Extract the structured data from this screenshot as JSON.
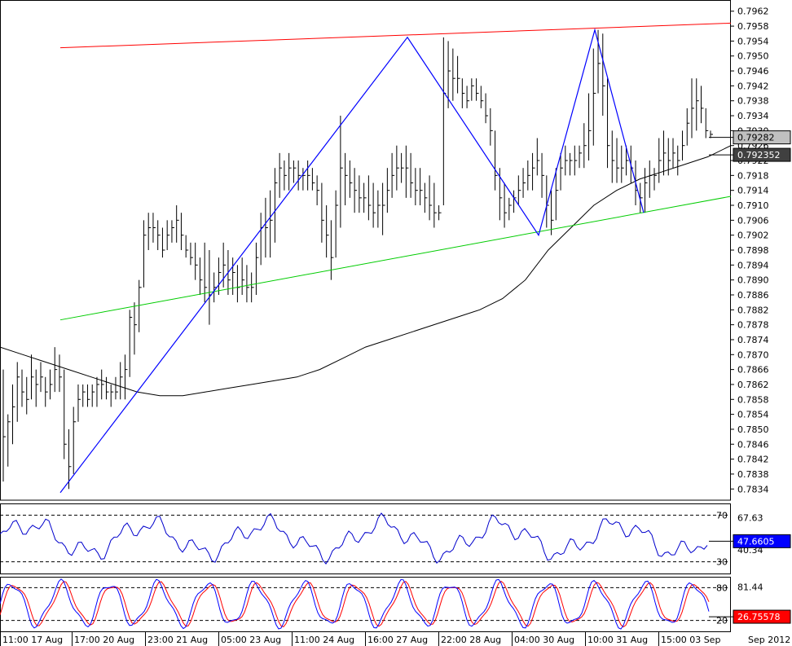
{
  "chart_data": [
    {
      "type": "ohlc",
      "panel": "price",
      "ylim": [
        0.7831,
        0.7965
      ],
      "y_ticks": [
        "0.7962",
        "0.7958",
        "0.7954",
        "0.7950",
        "0.7946",
        "0.7942",
        "0.7938",
        "0.7934",
        "0.7930",
        "0.7926",
        "0.7922",
        "0.7918",
        "0.7914",
        "0.7910",
        "0.7906",
        "0.7902",
        "0.7898",
        "0.7894",
        "0.7890",
        "0.7886",
        "0.7882",
        "0.7878",
        "0.7874",
        "0.7870",
        "0.7866",
        "0.7862",
        "0.7858",
        "0.7854",
        "0.7850",
        "0.7846",
        "0.7842",
        "0.7838",
        "0.7834"
      ],
      "x_labels": [
        "11:00 17 Aug",
        "17:00 20 Aug",
        "23:00 21 Aug",
        "05:00 23 Aug",
        "11:00 24 Aug",
        "16:00 27 Aug",
        "22:00 28 Aug",
        "04:00 30 Aug",
        "10:00 31 Aug",
        "15:00 03 Sep"
      ],
      "x_end_label": "Sep 2012",
      "price_labels": [
        {
          "text": "0.79282",
          "value": 0.79282,
          "bg": "#c0c0c0",
          "fg": "#000000"
        },
        {
          "text": "0.792352",
          "value": 0.792352,
          "bg": "#404040",
          "fg": "#ffffff"
        }
      ],
      "bars": [
        [
          0.7866,
          0.7836,
          0.7848
        ],
        [
          0.7854,
          0.784,
          0.7852
        ],
        [
          0.7862,
          0.7846,
          0.7856
        ],
        [
          0.7868,
          0.7852,
          0.7864
        ],
        [
          0.7866,
          0.7856,
          0.786
        ],
        [
          0.7864,
          0.7854,
          0.7858
        ],
        [
          0.787,
          0.7858,
          0.7864
        ],
        [
          0.7866,
          0.7856,
          0.7862
        ],
        [
          0.7868,
          0.786,
          0.7864
        ],
        [
          0.7864,
          0.7856,
          0.786
        ],
        [
          0.7866,
          0.7858,
          0.7862
        ],
        [
          0.7872,
          0.786,
          0.7866
        ],
        [
          0.787,
          0.786,
          0.7864
        ],
        [
          0.7866,
          0.7842,
          0.7846
        ],
        [
          0.785,
          0.7834,
          0.784
        ],
        [
          0.7856,
          0.7838,
          0.7852
        ],
        [
          0.7862,
          0.7852,
          0.7858
        ],
        [
          0.7862,
          0.7856,
          0.786
        ],
        [
          0.7862,
          0.7856,
          0.7858
        ],
        [
          0.7862,
          0.7856,
          0.786
        ],
        [
          0.7864,
          0.7856,
          0.7862
        ],
        [
          0.7866,
          0.7858,
          0.7862
        ],
        [
          0.7864,
          0.7858,
          0.786
        ],
        [
          0.7862,
          0.7856,
          0.786
        ],
        [
          0.7864,
          0.7858,
          0.786
        ],
        [
          0.7868,
          0.7858,
          0.7864
        ],
        [
          0.787,
          0.7858,
          0.7866
        ],
        [
          0.7882,
          0.7864,
          0.788
        ],
        [
          0.7884,
          0.787,
          0.7878
        ],
        [
          0.789,
          0.7876,
          0.7888
        ],
        [
          0.7906,
          0.7888,
          0.7902
        ],
        [
          0.7908,
          0.7898,
          0.7904
        ],
        [
          0.7908,
          0.79,
          0.7904
        ],
        [
          0.7906,
          0.7898,
          0.7902
        ],
        [
          0.7904,
          0.7896,
          0.7898
        ],
        [
          0.7906,
          0.7898,
          0.7902
        ],
        [
          0.7906,
          0.79,
          0.7904
        ],
        [
          0.791,
          0.79,
          0.7906
        ],
        [
          0.7908,
          0.7898,
          0.7902
        ],
        [
          0.7902,
          0.7896,
          0.7898
        ],
        [
          0.79,
          0.7894,
          0.7896
        ],
        [
          0.79,
          0.789,
          0.7894
        ],
        [
          0.7896,
          0.7886,
          0.789
        ],
        [
          0.79,
          0.7884,
          0.7888
        ],
        [
          0.7898,
          0.7878,
          0.7886
        ],
        [
          0.7892,
          0.7884,
          0.7888
        ],
        [
          0.7896,
          0.7886,
          0.7892
        ],
        [
          0.79,
          0.7888,
          0.7894
        ],
        [
          0.7898,
          0.7886,
          0.789
        ],
        [
          0.7896,
          0.7886,
          0.7892
        ],
        [
          0.7894,
          0.7884,
          0.7888
        ],
        [
          0.7896,
          0.7886,
          0.789
        ],
        [
          0.7894,
          0.7884,
          0.7888
        ],
        [
          0.7892,
          0.7884,
          0.7888
        ],
        [
          0.79,
          0.7886,
          0.7896
        ],
        [
          0.7908,
          0.7894,
          0.7904
        ],
        [
          0.7912,
          0.7896,
          0.7904
        ],
        [
          0.7914,
          0.7896,
          0.7906
        ],
        [
          0.792,
          0.79,
          0.7916
        ],
        [
          0.7924,
          0.7912,
          0.792
        ],
        [
          0.7922,
          0.7914,
          0.7918
        ],
        [
          0.7924,
          0.7914,
          0.792
        ],
        [
          0.7922,
          0.7916,
          0.792
        ],
        [
          0.7922,
          0.7914,
          0.7918
        ],
        [
          0.792,
          0.7914,
          0.7918
        ],
        [
          0.7922,
          0.7914,
          0.7918
        ],
        [
          0.792,
          0.7914,
          0.7916
        ],
        [
          0.7918,
          0.791,
          0.7914
        ],
        [
          0.7916,
          0.79,
          0.7906
        ],
        [
          0.791,
          0.7896,
          0.7902
        ],
        [
          0.7906,
          0.789,
          0.7896
        ],
        [
          0.7914,
          0.7896,
          0.791
        ],
        [
          0.7934,
          0.7904,
          0.792
        ],
        [
          0.7924,
          0.791,
          0.7918
        ],
        [
          0.7922,
          0.7912,
          0.7916
        ],
        [
          0.792,
          0.7908,
          0.7914
        ],
        [
          0.7918,
          0.7908,
          0.7912
        ],
        [
          0.7916,
          0.7908,
          0.7912
        ],
        [
          0.7918,
          0.7906,
          0.791
        ],
        [
          0.7916,
          0.7904,
          0.7908
        ],
        [
          0.7914,
          0.7904,
          0.791
        ],
        [
          0.7916,
          0.7902,
          0.791
        ],
        [
          0.792,
          0.7908,
          0.7914
        ],
        [
          0.7924,
          0.7912,
          0.7918
        ],
        [
          0.7926,
          0.7914,
          0.792
        ],
        [
          0.7924,
          0.7916,
          0.792
        ],
        [
          0.7926,
          0.7912,
          0.792
        ],
        [
          0.7924,
          0.7912,
          0.7916
        ],
        [
          0.792,
          0.791,
          0.7914
        ],
        [
          0.792,
          0.791,
          0.7914
        ],
        [
          0.7916,
          0.7908,
          0.7912
        ],
        [
          0.7918,
          0.7906,
          0.791
        ],
        [
          0.7916,
          0.7904,
          0.7908
        ],
        [
          0.791,
          0.7906,
          0.7908
        ],
        [
          0.7955,
          0.791,
          0.794
        ],
        [
          0.7954,
          0.7936,
          0.7946
        ],
        [
          0.7952,
          0.7938,
          0.7944
        ],
        [
          0.795,
          0.794,
          0.7944
        ],
        [
          0.7944,
          0.7936,
          0.794
        ],
        [
          0.7942,
          0.7936,
          0.7938
        ],
        [
          0.7944,
          0.7938,
          0.7942
        ],
        [
          0.7944,
          0.7938,
          0.794
        ],
        [
          0.7942,
          0.7936,
          0.7938
        ],
        [
          0.794,
          0.7932,
          0.7934
        ],
        [
          0.7936,
          0.7926,
          0.793
        ],
        [
          0.793,
          0.7914,
          0.7918
        ],
        [
          0.792,
          0.7906,
          0.7912
        ],
        [
          0.7916,
          0.7904,
          0.7908
        ],
        [
          0.7912,
          0.7906,
          0.791
        ],
        [
          0.7914,
          0.7908,
          0.7912
        ],
        [
          0.7918,
          0.791,
          0.7914
        ],
        [
          0.792,
          0.7912,
          0.7916
        ],
        [
          0.7922,
          0.7914,
          0.7918
        ],
        [
          0.7924,
          0.7914,
          0.792
        ],
        [
          0.7928,
          0.7918,
          0.7922
        ],
        [
          0.7924,
          0.7912,
          0.7918
        ],
        [
          0.7918,
          0.7904,
          0.791
        ],
        [
          0.7914,
          0.7902,
          0.7906
        ],
        [
          0.792,
          0.7906,
          0.7914
        ],
        [
          0.7924,
          0.7914,
          0.792
        ],
        [
          0.7926,
          0.7918,
          0.7922
        ],
        [
          0.7924,
          0.7918,
          0.7922
        ],
        [
          0.7926,
          0.7918,
          0.7922
        ],
        [
          0.7926,
          0.792,
          0.7924
        ],
        [
          0.7932,
          0.792,
          0.7926
        ],
        [
          0.794,
          0.7922,
          0.793
        ],
        [
          0.7952,
          0.7926,
          0.794
        ],
        [
          0.7957,
          0.794,
          0.7948
        ],
        [
          0.7956,
          0.7934,
          0.7942
        ],
        [
          0.7944,
          0.792,
          0.7926
        ],
        [
          0.793,
          0.7916,
          0.7922
        ],
        [
          0.7928,
          0.7916,
          0.792
        ],
        [
          0.7926,
          0.7916,
          0.792
        ],
        [
          0.7926,
          0.7918,
          0.7922
        ],
        [
          0.7926,
          0.7916,
          0.792
        ],
        [
          0.7922,
          0.791,
          0.7914
        ],
        [
          0.7916,
          0.7908,
          0.7912
        ],
        [
          0.792,
          0.7908,
          0.7916
        ],
        [
          0.7922,
          0.7912,
          0.7918
        ],
        [
          0.792,
          0.7914,
          0.7918
        ],
        [
          0.7928,
          0.7916,
          0.7922
        ],
        [
          0.793,
          0.7918,
          0.7924
        ],
        [
          0.7928,
          0.7918,
          0.7922
        ],
        [
          0.7928,
          0.792,
          0.7924
        ],
        [
          0.7926,
          0.7918,
          0.7922
        ],
        [
          0.793,
          0.7922,
          0.7926
        ],
        [
          0.7936,
          0.7926,
          0.7932
        ],
        [
          0.7944,
          0.7928,
          0.7936
        ],
        [
          0.7944,
          0.793,
          0.7938
        ],
        [
          0.7942,
          0.7932,
          0.7936
        ],
        [
          0.7936,
          0.7928,
          0.793
        ],
        [
          0.793,
          0.7928,
          0.7929
        ]
      ],
      "series": [
        {
          "name": "MA",
          "values": [
            0.7872,
            0.787,
            0.7868,
            0.7866,
            0.7864,
            0.7862,
            0.786,
            0.7859,
            0.7859,
            0.786,
            0.7861,
            0.7862,
            0.7863,
            0.7864,
            0.7866,
            0.7869,
            0.7872,
            0.7874,
            0.7876,
            0.7878,
            0.788,
            0.7882,
            0.7885,
            0.789,
            0.7898,
            0.7904,
            0.791,
            0.7914,
            0.7917,
            0.7919,
            0.7921,
            0.7923,
            0.7926
          ]
        },
        {
          "name": "RSI",
          "panel": "rsi",
          "ylim": [
            20,
            80
          ],
          "levels": [
            70,
            30
          ],
          "last": "47.6605",
          "extra_labels": [
            "67.63",
            "40.34"
          ]
        },
        {
          "name": "Stochastic",
          "panel": "stoch",
          "ylim": [
            0,
            100
          ],
          "levels": [
            80,
            20
          ],
          "last": "26.75578",
          "extra_labels": [
            "81.44"
          ]
        }
      ],
      "trendlines": [
        {
          "name": "upper resistance",
          "color": "#ff0000",
          "from": {
            "bar": 0.7,
            "value": 0.79522
          },
          "to": {
            "bar": 1.0,
            "value": 0.79588
          }
        },
        {
          "name": "lower support",
          "color": "#00cc00",
          "from": {
            "bar": 0.7,
            "value": 0.78793
          },
          "to": {
            "bar": 1.0,
            "value": 0.79124
          }
        }
      ],
      "zigzag": [
        0.7833,
        0.7955,
        0.7902,
        0.7957,
        0.7908
      ]
    }
  ],
  "colors": {
    "bars": "#000000",
    "ma": "#000000",
    "zigzag": "#0000ff",
    "upper": "#ff0000",
    "lower": "#00cc00",
    "rsi": "#0000cc",
    "stoch_k": "#0000ff",
    "stoch_d": "#ff0000",
    "rsi_box": "#0000ff",
    "stoch_box": "#ff0000"
  }
}
